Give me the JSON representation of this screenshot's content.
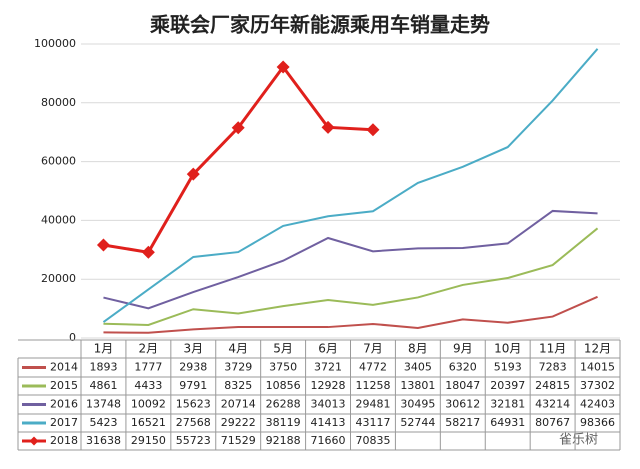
{
  "chart_data": {
    "type": "line",
    "title": "乘联会厂家历年新能源乘用车销量走势",
    "categories": [
      "1月",
      "2月",
      "3月",
      "4月",
      "5月",
      "6月",
      "7月",
      "8月",
      "9月",
      "10月",
      "11月",
      "12月"
    ],
    "series": [
      {
        "name": "2014",
        "color": "#c0504d",
        "values": [
          1893,
          1777,
          2938,
          3729,
          3750,
          3721,
          4772,
          3405,
          6320,
          5193,
          7283,
          14015
        ]
      },
      {
        "name": "2015",
        "color": "#9bbb59",
        "values": [
          4861,
          4433,
          9791,
          8325,
          10856,
          12928,
          11258,
          13801,
          18047,
          20397,
          24815,
          37302
        ]
      },
      {
        "name": "2016",
        "color": "#7060a0",
        "values": [
          13748,
          10092,
          15623,
          20714,
          26288,
          34013,
          29481,
          30495,
          30612,
          32181,
          43214,
          42403
        ]
      },
      {
        "name": "2017",
        "color": "#4bacc6",
        "values": [
          5423,
          16521,
          27568,
          29222,
          38119,
          41413,
          43117,
          52744,
          58217,
          64931,
          80767,
          98366
        ]
      },
      {
        "name": "2018",
        "color": "#e0201c",
        "marker": "diamond",
        "values": [
          31638,
          29150,
          55723,
          71529,
          92188,
          71660,
          70835,
          null,
          null,
          null,
          null,
          null
        ]
      }
    ],
    "ylim": [
      0,
      100000
    ],
    "yticks": [
      0,
      20000,
      40000,
      60000,
      80000,
      100000
    ],
    "grid": true,
    "watermark": "雀乐树"
  }
}
